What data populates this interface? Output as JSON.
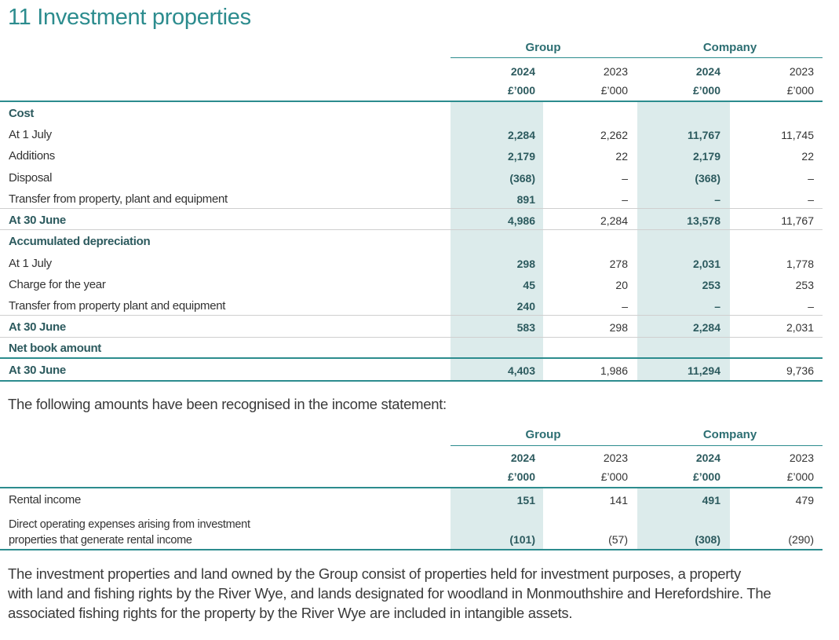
{
  "title": "11 Investment properties",
  "table1": {
    "group_label": "Group",
    "company_label": "Company",
    "years": [
      "2024",
      "2023",
      "2024",
      "2023"
    ],
    "units": [
      "£’000",
      "£’000",
      "£’000",
      "£’000"
    ],
    "cost_heading": "Cost",
    "cost_rows": [
      {
        "label": "At 1 July",
        "values": [
          "2,284",
          "2,262",
          "11,767",
          "11,745"
        ]
      },
      {
        "label": "Additions",
        "values": [
          "2,179",
          "22",
          "2,179",
          "22"
        ]
      },
      {
        "label": "Disposal",
        "values": [
          "(368)",
          "–",
          "(368)",
          "–"
        ]
      },
      {
        "label": "Transfer from property, plant and equipment",
        "values": [
          "891",
          "–",
          "–",
          "–"
        ]
      }
    ],
    "cost_total": {
      "label": "At 30 June",
      "values": [
        "4,986",
        "2,284",
        "13,578",
        "11,767"
      ]
    },
    "dep_heading": "Accumulated depreciation",
    "dep_rows": [
      {
        "label": "At 1 July",
        "values": [
          "298",
          "278",
          "2,031",
          "1,778"
        ]
      },
      {
        "label": "Charge for the year",
        "values": [
          "45",
          "20",
          "253",
          "253"
        ]
      },
      {
        "label": "Transfer from property plant and equipment",
        "values": [
          "240",
          "–",
          "–",
          "–"
        ]
      }
    ],
    "dep_total": {
      "label": "At 30 June",
      "values": [
        "583",
        "298",
        "2,284",
        "2,031"
      ]
    },
    "nba_heading": "Net book amount",
    "nba_total": {
      "label": "At 30 June",
      "values": [
        "4,403",
        "1,986",
        "11,294",
        "9,736"
      ]
    }
  },
  "intro_text": "The following amounts have been recognised in the income statement:",
  "table2": {
    "group_label": "Group",
    "company_label": "Company",
    "years": [
      "2024",
      "2023",
      "2024",
      "2023"
    ],
    "units": [
      "£’000",
      "£’000",
      "£’000",
      "£’000"
    ],
    "rows": [
      {
        "label": "Rental income",
        "values": [
          "151",
          "141",
          "491",
          "479"
        ]
      },
      {
        "label_line1": "Direct operating expenses arising from investment",
        "label_line2": "properties that generate rental income",
        "values": [
          "(101)",
          "(57)",
          "(308)",
          "(290)"
        ]
      }
    ]
  },
  "footer_text": {
    "line1": "The investment properties and land owned by the Group consist of properties held for investment purposes, a property",
    "line2": "with land and fishing rights by the River Wye, and lands designated for woodland in Monmouthshire and Herefordshire. The",
    "line3": "associated fishing rights for the property by the River Wye are included in intangible assets."
  },
  "colors": {
    "accent": "#2c8c8e",
    "band": "#dcebeb",
    "text": "#333333"
  }
}
